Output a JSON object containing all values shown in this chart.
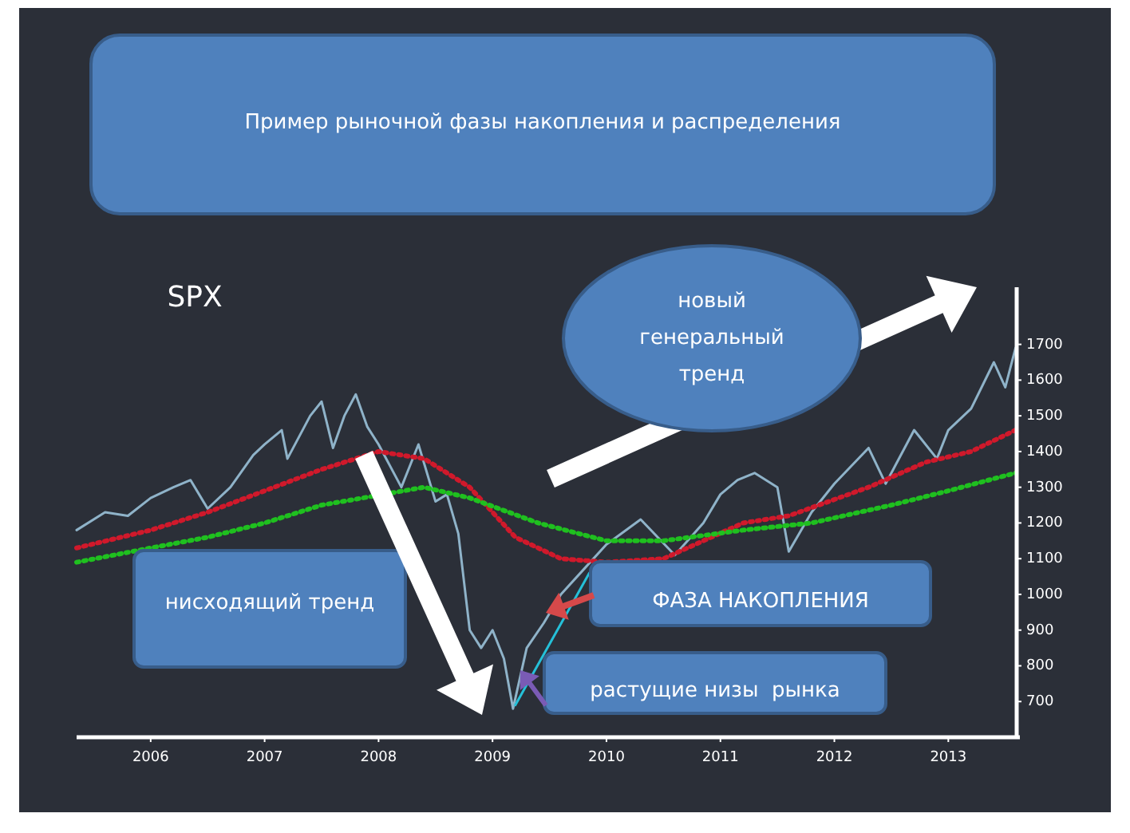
{
  "chart_data": {
    "type": "line",
    "title": "Пример рыночной фазы накопления и распределения",
    "subtitle": "SPX",
    "xlim": [
      2005.35,
      2013.6
    ],
    "ylim": [
      600,
      1860
    ],
    "xticks": [
      {
        "value": 2006,
        "label": "2006"
      },
      {
        "value": 2007,
        "label": "2007"
      },
      {
        "value": 2008,
        "label": "2008"
      },
      {
        "value": 2009,
        "label": "2009"
      },
      {
        "value": 2010,
        "label": "2010"
      },
      {
        "value": 2011,
        "label": "2011"
      },
      {
        "value": 2012,
        "label": "2012"
      },
      {
        "value": 2013,
        "label": "2013"
      }
    ],
    "yticks": [
      700,
      800,
      900,
      1000,
      1100,
      1200,
      1300,
      1400,
      1500,
      1600,
      1700
    ],
    "grid": false,
    "marker": "none",
    "series": [
      {
        "color": "#8fb3c9",
        "line_style": "solid",
        "x": [
          2005.35,
          2005.6,
          2005.8,
          2006.0,
          2006.2,
          2006.35,
          2006.5,
          2006.7,
          2006.9,
          2007.0,
          2007.15,
          2007.2,
          2007.4,
          2007.5,
          2007.6,
          2007.7,
          2007.8,
          2007.9,
          2008.0,
          2008.2,
          2008.35,
          2008.5,
          2008.6,
          2008.7,
          2008.8,
          2008.9,
          2009.0,
          2009.1,
          2009.18,
          2009.3,
          2009.45,
          2009.6,
          2009.8,
          2010.0,
          2010.3,
          2010.6,
          2010.85,
          2011.0,
          2011.15,
          2011.3,
          2011.5,
          2011.6,
          2011.8,
          2012.0,
          2012.3,
          2012.45,
          2012.7,
          2012.9,
          2013.0,
          2013.2,
          2013.4,
          2013.5,
          2013.59
        ],
        "values": [
          1180,
          1230,
          1220,
          1270,
          1300,
          1320,
          1240,
          1300,
          1390,
          1420,
          1460,
          1380,
          1500,
          1540,
          1410,
          1500,
          1560,
          1470,
          1420,
          1300,
          1420,
          1260,
          1280,
          1170,
          900,
          850,
          900,
          820,
          680,
          850,
          920,
          1000,
          1070,
          1140,
          1210,
          1110,
          1200,
          1280,
          1320,
          1340,
          1300,
          1120,
          1230,
          1310,
          1410,
          1310,
          1460,
          1380,
          1460,
          1520,
          1650,
          1580,
          1690
        ]
      },
      {
        "color": "#d0192b",
        "line_style": "dotted",
        "x": [
          2005.35,
          2006.0,
          2006.5,
          2007.0,
          2007.5,
          2008.0,
          2008.4,
          2008.8,
          2009.2,
          2009.6,
          2010.0,
          2010.5,
          2011.2,
          2011.6,
          2012.3,
          2012.8,
          2013.2,
          2013.59
        ],
        "values": [
          1130,
          1180,
          1230,
          1290,
          1350,
          1400,
          1380,
          1300,
          1160,
          1100,
          1090,
          1100,
          1200,
          1220,
          1300,
          1370,
          1400,
          1460
        ]
      },
      {
        "color": "#1fc01f",
        "line_style": "dotted",
        "x": [
          2005.35,
          2006.0,
          2006.5,
          2007.0,
          2007.5,
          2008.4,
          2008.8,
          2009.4,
          2010.0,
          2010.5,
          2011.2,
          2011.8,
          2012.5,
          2013.0,
          2013.59
        ],
        "values": [
          1090,
          1130,
          1160,
          1200,
          1250,
          1300,
          1270,
          1200,
          1150,
          1150,
          1180,
          1200,
          1250,
          1290,
          1340
        ]
      },
      {
        "color": "#25c0d8",
        "line_style": "solid",
        "x": [
          2009.2,
          2009.85
        ],
        "values": [
          690,
          1060
        ]
      }
    ],
    "annotations": [
      "нисходящий тренд",
      "ФАЗА НАКОПЛЕНИЯ",
      "растущие низы  рынка",
      "новый генеральный тренд"
    ]
  }
}
